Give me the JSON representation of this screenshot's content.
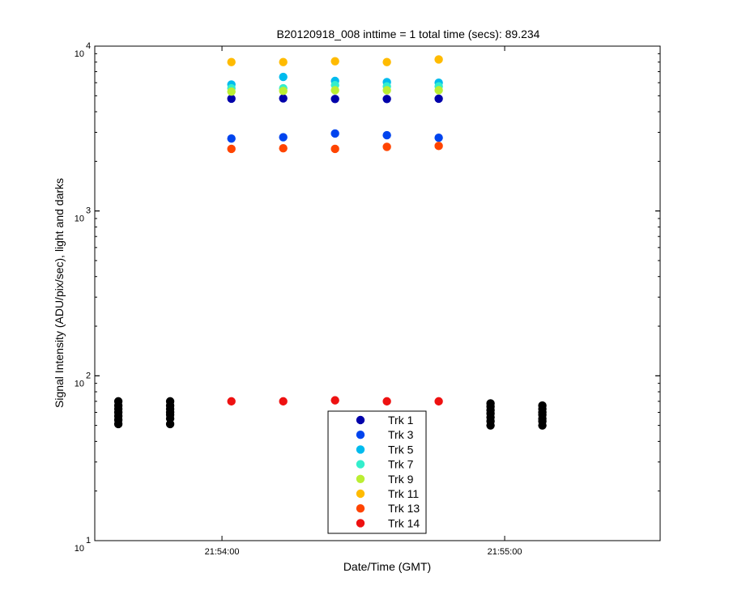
{
  "chart_data": {
    "type": "scatter",
    "title": "B20120918_008 inttime = 1 total time (secs): 89.234",
    "xlabel": "Date/Time (GMT)",
    "ylabel": "Signal Intensity (ADU/pix/sec), light and darks",
    "yscale": "log",
    "ylim": [
      10,
      10000
    ],
    "xlim": [
      "21:53:33",
      "21:55:33"
    ],
    "x_ticks": [
      "21:54:00",
      "21:55:00"
    ],
    "y_ticks": [
      {
        "base": "10",
        "exp": "1",
        "value": 10
      },
      {
        "base": "10",
        "exp": "2",
        "value": 100
      },
      {
        "base": "10",
        "exp": "3",
        "value": 1000
      },
      {
        "base": "10",
        "exp": "4",
        "value": 10000
      }
    ],
    "grid": false,
    "legend_position": "bottom-center",
    "light_times": [
      "21:54:02",
      "21:54:13",
      "21:54:24",
      "21:54:35",
      "21:54:46"
    ],
    "series": [
      {
        "name": "Trk 1",
        "color": "#0000aa",
        "values": [
          4800,
          4820,
          4780,
          4780,
          4800
        ]
      },
      {
        "name": "Trk 3",
        "color": "#0044ee",
        "values": [
          2750,
          2800,
          2950,
          2880,
          2780
        ]
      },
      {
        "name": "Trk 5",
        "color": "#00bbee",
        "values": [
          5850,
          6500,
          6150,
          6050,
          6000
        ]
      },
      {
        "name": "Trk 7",
        "color": "#33eecc",
        "values": [
          5550,
          5550,
          5800,
          5700,
          5700
        ]
      },
      {
        "name": "Trk 9",
        "color": "#bbee33",
        "values": [
          5300,
          5350,
          5400,
          5400,
          5400
        ]
      },
      {
        "name": "Trk 11",
        "color": "#ffbb00",
        "values": [
          8000,
          8000,
          8100,
          8000,
          8300
        ]
      },
      {
        "name": "Trk 13",
        "color": "#ff4400",
        "values": [
          2380,
          2400,
          2380,
          2450,
          2480
        ]
      },
      {
        "name": "Trk 14",
        "color": "#ee1111",
        "values": [
          70,
          70,
          71,
          70,
          70
        ]
      }
    ],
    "darks": {
      "color": "#000000",
      "points": [
        {
          "time": "21:53:38",
          "values": [
            51,
            54,
            57,
            60,
            63,
            66,
            70
          ]
        },
        {
          "time": "21:53:49",
          "values": [
            51,
            55,
            58,
            60,
            63,
            66,
            70
          ]
        },
        {
          "time": "21:54:57",
          "values": [
            50,
            53,
            56,
            59,
            62,
            65,
            68
          ]
        },
        {
          "time": "21:55:08",
          "values": [
            50,
            53,
            55,
            58,
            60,
            63,
            66
          ]
        }
      ]
    }
  }
}
